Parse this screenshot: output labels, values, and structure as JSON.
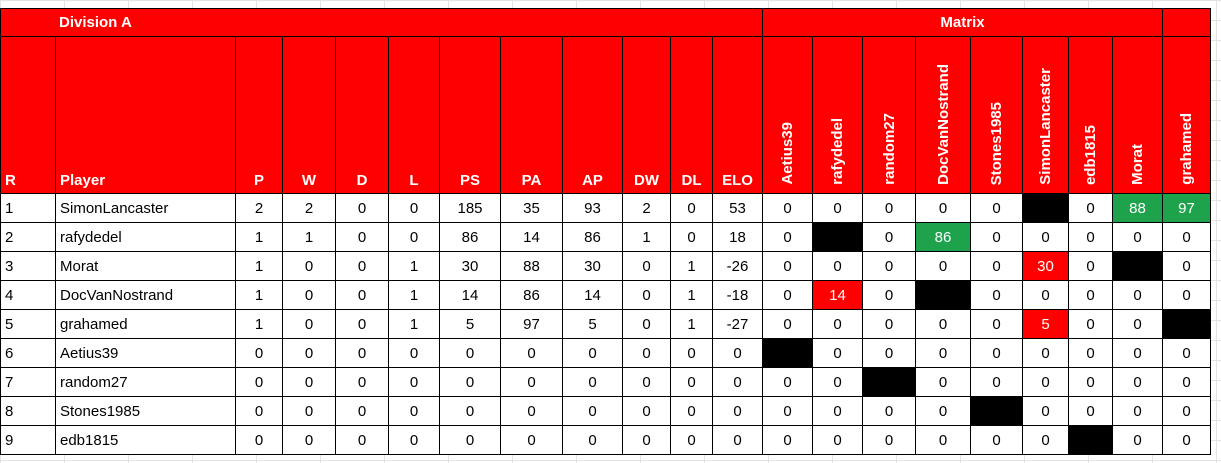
{
  "title": "Division A",
  "matrix_title": "Matrix",
  "columns": [
    "R",
    "Player",
    "P",
    "W",
    "D",
    "L",
    "PS",
    "PA",
    "AP",
    "DW",
    "DL",
    "ELO"
  ],
  "matrix_columns": [
    "Aetius39",
    "rafydedel",
    "random27",
    "DocVanNostrand",
    "Stones1985",
    "SimonLancaster",
    "edb1815",
    "Morat",
    "grahamed"
  ],
  "rows": [
    {
      "rank": 1,
      "player": "SimonLancaster",
      "stats": [
        2,
        2,
        0,
        0,
        185,
        35,
        93,
        2,
        0,
        53
      ],
      "matrix": [
        0,
        0,
        0,
        0,
        0,
        null,
        0,
        88,
        97
      ],
      "matrix_colors": [
        "#ffffff",
        "#ffffff",
        "#ffffff",
        "#ffffff",
        "#ffffff",
        "#000000",
        "#ffffff",
        "#1fa24c",
        "#1fa24c"
      ]
    },
    {
      "rank": 2,
      "player": "rafydedel",
      "stats": [
        1,
        1,
        0,
        0,
        86,
        14,
        86,
        1,
        0,
        18
      ],
      "matrix": [
        0,
        null,
        0,
        86,
        0,
        0,
        0,
        0,
        0
      ],
      "matrix_colors": [
        "#ffffff",
        "#000000",
        "#ffffff",
        "#1fa24c",
        "#ffffff",
        "#ffffff",
        "#ffffff",
        "#ffffff",
        "#ffffff"
      ]
    },
    {
      "rank": 3,
      "player": "Morat",
      "stats": [
        1,
        0,
        0,
        1,
        30,
        88,
        30,
        0,
        1,
        -26
      ],
      "matrix": [
        0,
        0,
        0,
        0,
        0,
        30,
        0,
        null,
        0
      ],
      "matrix_colors": [
        "#ffffff",
        "#ffffff",
        "#ffffff",
        "#ffffff",
        "#ffffff",
        "#ff0000",
        "#ffffff",
        "#000000",
        "#ffffff"
      ]
    },
    {
      "rank": 4,
      "player": "DocVanNostrand",
      "stats": [
        1,
        0,
        0,
        1,
        14,
        86,
        14,
        0,
        1,
        -18
      ],
      "matrix": [
        0,
        14,
        0,
        null,
        0,
        0,
        0,
        0,
        0
      ],
      "matrix_colors": [
        "#ffffff",
        "#ff0000",
        "#ffffff",
        "#000000",
        "#ffffff",
        "#ffffff",
        "#ffffff",
        "#ffffff",
        "#ffffff"
      ]
    },
    {
      "rank": 5,
      "player": "grahamed",
      "stats": [
        1,
        0,
        0,
        1,
        5,
        97,
        5,
        0,
        1,
        -27
      ],
      "matrix": [
        0,
        0,
        0,
        0,
        0,
        5,
        0,
        0,
        null
      ],
      "matrix_colors": [
        "#ffffff",
        "#ffffff",
        "#ffffff",
        "#ffffff",
        "#ffffff",
        "#ff0000",
        "#ffffff",
        "#ffffff",
        "#000000"
      ]
    },
    {
      "rank": 6,
      "player": "Aetius39",
      "stats": [
        0,
        0,
        0,
        0,
        0,
        0,
        0,
        0,
        0,
        0
      ],
      "matrix": [
        null,
        0,
        0,
        0,
        0,
        0,
        0,
        0,
        0
      ],
      "matrix_colors": [
        "#000000",
        "#ffffff",
        "#ffffff",
        "#ffffff",
        "#ffffff",
        "#ffffff",
        "#ffffff",
        "#ffffff",
        "#ffffff"
      ]
    },
    {
      "rank": 7,
      "player": "random27",
      "stats": [
        0,
        0,
        0,
        0,
        0,
        0,
        0,
        0,
        0,
        0
      ],
      "matrix": [
        0,
        0,
        null,
        0,
        0,
        0,
        0,
        0,
        0
      ],
      "matrix_colors": [
        "#ffffff",
        "#ffffff",
        "#000000",
        "#ffffff",
        "#ffffff",
        "#ffffff",
        "#ffffff",
        "#ffffff",
        "#ffffff"
      ]
    },
    {
      "rank": 8,
      "player": "Stones1985",
      "stats": [
        0,
        0,
        0,
        0,
        0,
        0,
        0,
        0,
        0,
        0
      ],
      "matrix": [
        0,
        0,
        0,
        0,
        null,
        0,
        0,
        0,
        0
      ],
      "matrix_colors": [
        "#ffffff",
        "#ffffff",
        "#ffffff",
        "#ffffff",
        "#000000",
        "#ffffff",
        "#ffffff",
        "#ffffff",
        "#ffffff"
      ]
    },
    {
      "rank": 9,
      "player": "edb1815",
      "stats": [
        0,
        0,
        0,
        0,
        0,
        0,
        0,
        0,
        0,
        0
      ],
      "matrix": [
        0,
        0,
        0,
        0,
        0,
        0,
        null,
        0,
        0
      ],
      "matrix_colors": [
        "#ffffff",
        "#ffffff",
        "#ffffff",
        "#ffffff",
        "#ffffff",
        "#ffffff",
        "#000000",
        "#ffffff",
        "#ffffff"
      ]
    }
  ]
}
